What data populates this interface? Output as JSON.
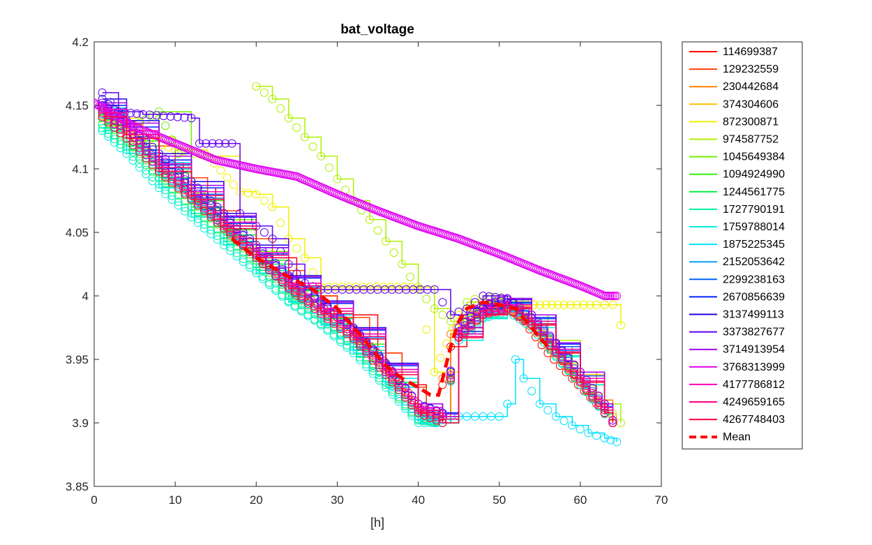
{
  "chart_data": {
    "type": "scatter",
    "title": "bat_voltage",
    "xlabel": "[h]",
    "ylabel": "",
    "xlim": [
      0,
      70
    ],
    "ylim": [
      3.85,
      4.2
    ],
    "xticks": [
      "0",
      "10",
      "20",
      "30",
      "40",
      "50",
      "60",
      "70"
    ],
    "yticks": [
      "3.85",
      "3.9",
      "3.95",
      "4",
      "4.05",
      "4.1",
      "4.15",
      "4.2"
    ],
    "legend_position": "outside-right",
    "grid": false,
    "series": [
      {
        "name": "114699387",
        "color": "#ff0000",
        "style": "stairs-markers",
        "x": [
          1,
          3,
          5,
          8,
          11,
          15,
          20,
          25,
          30,
          35,
          38,
          41,
          42,
          44,
          46,
          48,
          50,
          53,
          56,
          59,
          62,
          64
        ],
        "y": [
          4.15,
          4.138,
          4.125,
          4.105,
          4.085,
          4.062,
          4.03,
          4.0,
          3.985,
          3.955,
          3.93,
          3.905,
          3.9,
          3.96,
          3.98,
          3.99,
          3.995,
          3.98,
          3.955,
          3.935,
          3.915,
          3.9
        ]
      },
      {
        "name": "129232559",
        "color": "#ff4000",
        "style": "stairs-markers",
        "x": [
          1,
          3,
          6,
          10,
          14,
          18,
          22,
          26,
          30,
          34,
          38,
          41,
          43,
          45,
          48,
          51,
          54,
          57,
          60,
          63,
          64
        ],
        "y": [
          4.148,
          4.135,
          4.118,
          4.093,
          4.067,
          4.045,
          4.02,
          4.0,
          3.983,
          3.955,
          3.928,
          3.903,
          3.905,
          3.975,
          3.99,
          3.993,
          3.978,
          3.955,
          3.93,
          3.912,
          3.905
        ]
      },
      {
        "name": "230442684",
        "color": "#ff8000",
        "style": "stairs-markers",
        "x": [
          1,
          4,
          8,
          12,
          16,
          20,
          24,
          28,
          32,
          36,
          40,
          42,
          44,
          47,
          50,
          53,
          56,
          59,
          62,
          64
        ],
        "y": [
          4.145,
          4.13,
          4.103,
          4.08,
          4.058,
          4.035,
          4.01,
          3.99,
          3.97,
          3.942,
          3.91,
          3.9,
          3.97,
          3.99,
          3.995,
          3.982,
          3.96,
          3.94,
          3.918,
          3.905
        ]
      },
      {
        "name": "374304606",
        "color": "#ffc000",
        "style": "stairs-markers",
        "x": [
          1,
          4,
          8,
          12,
          16,
          20,
          24,
          28,
          32,
          36,
          40,
          43,
          45,
          48,
          51,
          54,
          57,
          60,
          63,
          64
        ],
        "y": [
          4.142,
          4.127,
          4.1,
          4.077,
          4.055,
          4.03,
          4.007,
          3.988,
          3.968,
          3.94,
          3.91,
          3.903,
          3.975,
          3.99,
          3.992,
          3.98,
          3.96,
          3.938,
          3.915,
          3.905
        ]
      },
      {
        "name": "872300871",
        "color": "#f0f000",
        "style": "stairs-markers",
        "x": [
          2,
          6,
          10,
          14,
          18,
          20,
          22,
          24,
          26,
          28,
          40,
          42,
          45,
          48,
          52,
          55,
          58,
          62,
          64,
          65
        ],
        "y": [
          4.14,
          4.125,
          4.115,
          4.11,
          4.082,
          4.08,
          4.07,
          4.045,
          4.03,
          4.007,
          4.007,
          3.94,
          3.985,
          3.995,
          3.993,
          3.993,
          3.993,
          3.993,
          3.993,
          3.977
        ]
      },
      {
        "name": "974587752",
        "color": "#b0f000",
        "style": "stairs-markers",
        "x": [
          20,
          22,
          24,
          26,
          28,
          30,
          32,
          34,
          36,
          38,
          40,
          42,
          44,
          46,
          48,
          50,
          53,
          56,
          60,
          63,
          65
        ],
        "y": [
          4.165,
          4.155,
          4.14,
          4.125,
          4.11,
          4.092,
          4.075,
          4.06,
          4.043,
          4.025,
          4.005,
          3.99,
          3.98,
          3.995,
          4.0,
          3.998,
          3.985,
          3.965,
          3.94,
          3.915,
          3.9
        ]
      },
      {
        "name": "1045649384",
        "color": "#70f000",
        "style": "stairs-markers",
        "x": [
          1,
          4,
          8,
          12,
          16,
          20,
          24,
          28,
          32,
          36,
          40,
          43,
          45,
          48,
          51,
          54,
          57,
          60,
          63,
          64
        ],
        "y": [
          4.145,
          4.13,
          4.145,
          4.09,
          4.06,
          4.035,
          4.01,
          3.99,
          3.97,
          3.94,
          3.91,
          3.905,
          3.975,
          3.99,
          3.995,
          3.985,
          3.96,
          3.94,
          3.915,
          3.9
        ]
      },
      {
        "name": "1094924990",
        "color": "#30f000",
        "style": "stairs-markers",
        "x": [
          1,
          4,
          8,
          12,
          16,
          20,
          24,
          28,
          32,
          36,
          40,
          43,
          45,
          48,
          51,
          54,
          57,
          60,
          63,
          64
        ],
        "y": [
          4.14,
          4.122,
          4.097,
          4.075,
          4.052,
          4.028,
          4.004,
          3.985,
          3.962,
          3.935,
          3.905,
          3.9,
          3.97,
          3.985,
          3.99,
          3.98,
          3.955,
          3.935,
          3.912,
          3.9
        ]
      },
      {
        "name": "1244561775",
        "color": "#00f040",
        "style": "stairs-markers",
        "x": [
          1,
          4,
          8,
          12,
          16,
          20,
          24,
          28,
          32,
          36,
          40,
          43,
          45,
          48,
          51,
          54,
          57,
          60,
          63,
          64
        ],
        "y": [
          4.135,
          4.118,
          4.093,
          4.07,
          4.048,
          4.025,
          4.0,
          3.982,
          3.96,
          3.932,
          3.903,
          3.9,
          3.97,
          3.985,
          3.99,
          3.978,
          3.955,
          3.932,
          3.91,
          3.9
        ]
      },
      {
        "name": "1727790191",
        "color": "#00f0a0",
        "style": "stairs-markers",
        "x": [
          1,
          4,
          8,
          12,
          16,
          20,
          24,
          28,
          32,
          36,
          40,
          43,
          45,
          48,
          51,
          54,
          57,
          60,
          63,
          64
        ],
        "y": [
          4.132,
          4.115,
          4.088,
          4.065,
          4.043,
          4.02,
          3.996,
          3.978,
          3.957,
          3.93,
          3.902,
          3.9,
          3.968,
          3.983,
          3.99,
          3.978,
          3.953,
          3.93,
          3.908,
          3.9
        ]
      },
      {
        "name": "1759788014",
        "color": "#00f0e0",
        "style": "stairs-markers",
        "x": [
          1,
          4,
          8,
          12,
          16,
          20,
          24,
          28,
          32,
          36,
          40,
          43,
          45,
          48,
          51,
          54,
          57,
          60,
          63,
          64
        ],
        "y": [
          4.13,
          4.112,
          4.085,
          4.062,
          4.04,
          4.018,
          3.995,
          3.977,
          3.955,
          3.928,
          3.9,
          3.9,
          3.965,
          3.982,
          3.988,
          3.975,
          3.952,
          3.93,
          3.907,
          3.9
        ]
      },
      {
        "name": "1875225345",
        "color": "#00e0ff",
        "style": "stairs-markers",
        "x": [
          1,
          4,
          8,
          12,
          16,
          20,
          24,
          28,
          32,
          36,
          40,
          42,
          44,
          46,
          48,
          50,
          51,
          52,
          53,
          55,
          57,
          59,
          61,
          63,
          64.5
        ],
        "y": [
          4.148,
          4.13,
          4.105,
          4.08,
          4.055,
          4.03,
          4.005,
          3.985,
          3.96,
          3.935,
          3.905,
          3.9,
          3.905,
          3.905,
          3.905,
          3.905,
          3.915,
          3.95,
          3.935,
          3.915,
          3.905,
          3.898,
          3.892,
          3.888,
          3.885
        ]
      },
      {
        "name": "2152053642",
        "color": "#00a0ff",
        "style": "stairs-markers",
        "x": [
          1,
          4,
          8,
          12,
          16,
          20,
          24,
          28,
          32,
          36,
          40,
          43,
          45,
          48,
          51,
          54,
          57,
          60,
          63,
          64
        ],
        "y": [
          4.143,
          4.127,
          4.1,
          4.077,
          4.055,
          4.03,
          4.007,
          3.988,
          3.967,
          3.94,
          3.91,
          3.905,
          3.97,
          3.987,
          3.993,
          3.98,
          3.957,
          3.935,
          3.912,
          3.9
        ]
      },
      {
        "name": "2299238163",
        "color": "#0060ff",
        "style": "stairs-markers",
        "x": [
          1,
          4,
          8,
          12,
          16,
          20,
          24,
          28,
          32,
          36,
          40,
          43,
          45,
          48,
          51,
          54,
          57,
          60,
          63,
          64
        ],
        "y": [
          4.146,
          4.13,
          4.103,
          4.08,
          4.057,
          4.033,
          4.01,
          3.99,
          3.97,
          3.942,
          3.912,
          3.905,
          3.97,
          3.988,
          3.994,
          3.982,
          3.96,
          3.937,
          3.913,
          3.9
        ]
      },
      {
        "name": "2670856639",
        "color": "#0020ff",
        "style": "stairs-markers",
        "x": [
          1,
          4,
          8,
          12,
          16,
          20,
          24,
          28,
          32,
          36,
          40,
          43,
          45,
          48,
          51,
          54,
          57,
          60,
          63,
          64
        ],
        "y": [
          4.15,
          4.133,
          4.107,
          4.085,
          4.062,
          4.038,
          4.014,
          3.994,
          3.973,
          3.945,
          3.915,
          3.908,
          3.972,
          3.99,
          3.995,
          3.983,
          3.962,
          3.94,
          3.915,
          3.902
        ]
      },
      {
        "name": "3137499113",
        "color": "#2000e0",
        "style": "stairs-markers",
        "x": [
          1,
          4,
          8,
          12,
          16,
          20,
          24,
          28,
          32,
          36,
          40,
          43,
          45,
          48,
          51,
          54,
          57,
          60,
          63,
          64
        ],
        "y": [
          4.155,
          4.138,
          4.112,
          4.09,
          4.065,
          4.04,
          4.016,
          3.996,
          3.975,
          3.947,
          3.915,
          3.907,
          3.975,
          3.992,
          3.997,
          3.985,
          3.963,
          3.94,
          3.915,
          3.9
        ]
      },
      {
        "name": "3373827677",
        "color": "#6000f0",
        "style": "stairs-markers",
        "x": [
          1,
          3,
          6,
          12,
          13,
          17,
          18,
          20,
          22,
          24,
          26,
          28,
          42,
          44,
          46,
          48,
          51,
          54,
          57,
          60,
          63,
          64
        ],
        "y": [
          4.16,
          4.145,
          4.143,
          4.14,
          4.12,
          4.12,
          4.065,
          4.055,
          4.045,
          4.025,
          4.01,
          4.005,
          4.005,
          3.985,
          3.99,
          4.0,
          3.998,
          3.985,
          3.963,
          3.94,
          3.915,
          3.9
        ]
      },
      {
        "name": "3714913954",
        "color": "#a000f0",
        "style": "stairs-markers",
        "x": [
          1,
          4,
          8,
          12,
          16,
          20,
          24,
          28,
          32,
          36,
          40,
          43,
          45,
          48,
          51,
          54,
          57,
          60,
          63,
          64
        ],
        "y": [
          4.152,
          4.136,
          4.11,
          4.087,
          4.063,
          4.038,
          4.015,
          3.995,
          3.974,
          3.946,
          3.915,
          3.907,
          3.975,
          3.993,
          3.998,
          3.985,
          3.963,
          3.94,
          3.915,
          3.902
        ]
      },
      {
        "name": "3768313999",
        "color": "#e000f0",
        "style": "markers",
        "x": [
          0,
          5,
          10,
          15,
          20,
          25,
          30,
          35,
          40,
          45,
          50,
          55,
          60,
          63,
          64.5
        ],
        "y": [
          4.152,
          4.133,
          4.12,
          4.107,
          4.1,
          4.094,
          4.08,
          4.067,
          4.055,
          4.045,
          4.033,
          4.02,
          4.008,
          4.0,
          4.0
        ]
      },
      {
        "name": "4177786812",
        "color": "#ff00c0",
        "style": "stairs-markers",
        "x": [
          1,
          4,
          8,
          12,
          16,
          20,
          24,
          28,
          32,
          36,
          40,
          43,
          45,
          48,
          51,
          54,
          57,
          60,
          63,
          64
        ],
        "y": [
          4.147,
          4.13,
          4.104,
          4.082,
          4.058,
          4.034,
          4.01,
          3.99,
          3.97,
          3.942,
          3.912,
          3.905,
          3.97,
          3.988,
          3.993,
          3.98,
          3.958,
          3.935,
          3.912,
          3.9
        ]
      },
      {
        "name": "4249659165",
        "color": "#ff0080",
        "style": "stairs-markers",
        "x": [
          1,
          4,
          8,
          12,
          16,
          20,
          24,
          28,
          32,
          36,
          40,
          43,
          45,
          48,
          51,
          54,
          57,
          60,
          63,
          64
        ],
        "y": [
          4.144,
          4.127,
          4.101,
          4.079,
          4.055,
          4.032,
          4.008,
          3.988,
          3.968,
          3.94,
          3.91,
          3.903,
          3.968,
          3.986,
          3.991,
          3.978,
          3.956,
          3.933,
          3.91,
          3.9
        ]
      },
      {
        "name": "4267748403",
        "color": "#ff0040",
        "style": "stairs-markers",
        "x": [
          1,
          4,
          8,
          12,
          16,
          20,
          24,
          28,
          32,
          36,
          40,
          43,
          45,
          48,
          51,
          54,
          57,
          60,
          63,
          64
        ],
        "y": [
          4.141,
          4.124,
          4.098,
          4.076,
          4.053,
          4.03,
          4.006,
          3.986,
          3.966,
          3.938,
          3.908,
          3.9,
          3.967,
          3.985,
          3.99,
          3.977,
          3.955,
          3.932,
          3.908,
          3.9
        ]
      },
      {
        "name": "Mean",
        "color": "#ff0000",
        "style": "dashed-thick",
        "x": [
          17,
          20,
          24,
          27,
          30,
          33,
          36,
          38,
          40,
          41.5,
          42.5,
          44,
          45,
          46,
          48,
          50,
          52,
          54,
          56
        ],
        "y": [
          4.045,
          4.03,
          4.015,
          4.005,
          3.99,
          3.968,
          3.945,
          3.935,
          3.928,
          3.922,
          3.922,
          3.96,
          3.98,
          3.99,
          3.995,
          3.993,
          3.99,
          3.975,
          3.96
        ]
      }
    ]
  }
}
